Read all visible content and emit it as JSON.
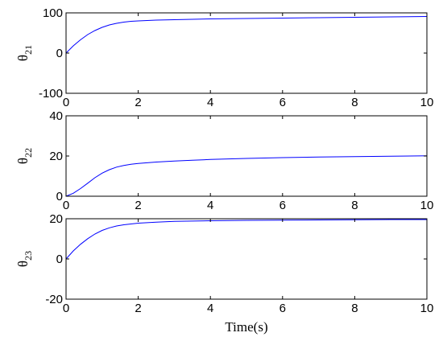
{
  "chart_data": [
    {
      "type": "line",
      "ylabel_base": "θ",
      "ylabel_sub": "21",
      "xlabel": "",
      "xlim": [
        0,
        10
      ],
      "ylim": [
        -100,
        100
      ],
      "x_ticks": [
        "0",
        "2",
        "4",
        "6",
        "8",
        "10"
      ],
      "y_ticks": [
        "-100",
        "0",
        "100"
      ],
      "y_tick_values": [
        -100,
        0,
        100
      ],
      "series": [
        {
          "color": "#0000ff",
          "x": [
            0,
            0.2,
            0.4,
            0.6,
            0.8,
            1.0,
            1.2,
            1.4,
            1.6,
            1.8,
            2.0,
            2.5,
            3,
            3.5,
            4,
            5,
            6,
            7,
            8,
            9,
            10
          ],
          "y": [
            0,
            18,
            33,
            46,
            56,
            64,
            70,
            74,
            77,
            79,
            80,
            82,
            83,
            84,
            85,
            86,
            87,
            88,
            89,
            90,
            91
          ]
        }
      ]
    },
    {
      "type": "line",
      "ylabel_base": "θ",
      "ylabel_sub": "22",
      "xlabel": "",
      "xlim": [
        0,
        10
      ],
      "ylim": [
        0,
        40
      ],
      "x_ticks": [
        "0",
        "2",
        "4",
        "6",
        "8",
        "10"
      ],
      "y_ticks": [
        "0",
        "20",
        "40"
      ],
      "y_tick_values": [
        0,
        20,
        40
      ],
      "series": [
        {
          "color": "#0000ff",
          "x": [
            0,
            0.2,
            0.4,
            0.6,
            0.8,
            1.0,
            1.2,
            1.4,
            1.6,
            1.8,
            2.0,
            2.5,
            3,
            3.5,
            4,
            5,
            6,
            7,
            8,
            9,
            10
          ],
          "y": [
            0,
            1.5,
            3.8,
            6.5,
            9.2,
            11.5,
            13.2,
            14.5,
            15.3,
            15.9,
            16.3,
            17.0,
            17.5,
            17.9,
            18.3,
            18.8,
            19.2,
            19.5,
            19.7,
            19.9,
            20.1
          ]
        }
      ]
    },
    {
      "type": "line",
      "ylabel_base": "θ",
      "ylabel_sub": "23",
      "xlabel": "Time(s)",
      "xlim": [
        0,
        10
      ],
      "ylim": [
        -20,
        20
      ],
      "x_ticks": [
        "0",
        "2",
        "4",
        "6",
        "8",
        "10"
      ],
      "y_ticks": [
        "-20",
        "0",
        "20"
      ],
      "y_tick_values": [
        -20,
        0,
        20
      ],
      "series": [
        {
          "color": "#0000ff",
          "x": [
            0,
            0.2,
            0.4,
            0.6,
            0.8,
            1.0,
            1.2,
            1.4,
            1.6,
            1.8,
            2.0,
            2.5,
            3,
            4,
            5,
            6,
            7,
            8,
            9,
            10
          ],
          "y": [
            0,
            4.0,
            7.3,
            10.1,
            12.4,
            14.2,
            15.5,
            16.4,
            17.0,
            17.4,
            17.8,
            18.3,
            18.7,
            19.0,
            19.2,
            19.3,
            19.4,
            19.5,
            19.6,
            19.6
          ]
        }
      ]
    }
  ]
}
